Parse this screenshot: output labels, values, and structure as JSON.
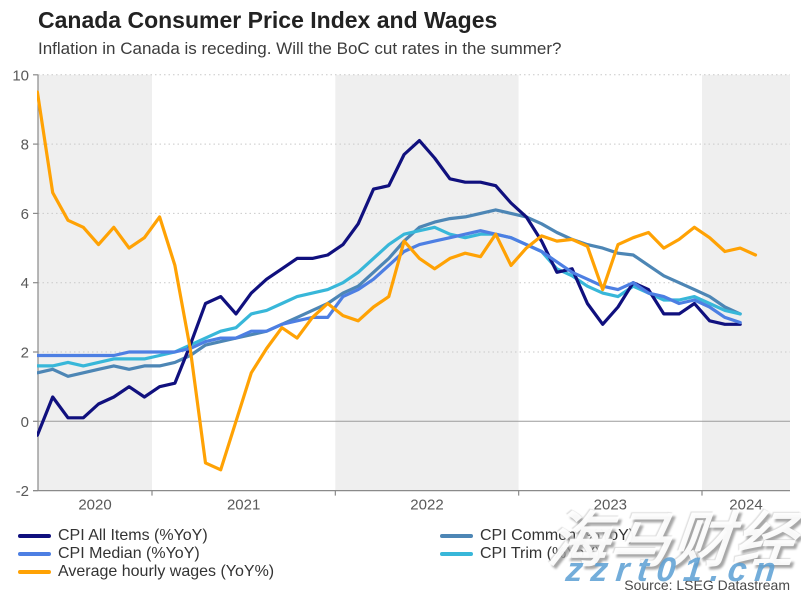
{
  "header": {
    "title": "Canada Consumer Price Index and Wages",
    "subtitle": "Inflation in Canada is receding. Will the BoC cut rates in the summer?"
  },
  "source": "Source: LSEG Datastream",
  "watermark": {
    "line1": "海马财经",
    "line2": "zzrt01.cn"
  },
  "legend": {
    "left_column": [
      {
        "label": "CPI All Items (%YoY)",
        "color": "#10107e"
      },
      {
        "label": "CPI Median (%YoY)",
        "color": "#4d7fe3"
      },
      {
        "label": "Average hourly wages (YoY%)",
        "color": "#ffa204"
      }
    ],
    "right_column": [
      {
        "label": "CPI Common (%YoY)",
        "color": "#4d86b5"
      },
      {
        "label": "CPI Trim (%YoY)",
        "color": "#38b7d9"
      }
    ]
  },
  "chart_data": {
    "type": "line",
    "title": "Canada Consumer Price Index and Wages",
    "x_start_month": "2020-05",
    "x_frequency": "monthly",
    "x_tick_labels": [
      "2020",
      "2021",
      "2022",
      "2023",
      "2024"
    ],
    "y_ticks": [
      -2,
      0,
      2,
      4,
      6,
      8,
      10
    ],
    "ylim": [
      -2,
      10
    ],
    "grid": "dotted-horizontal",
    "zero_line": true,
    "band_years_shaded": [
      "2020",
      "2022",
      "2024"
    ],
    "legend_position": "bottom",
    "colors": {
      "shaded_band": "#efefef",
      "gridline": "#c9c9c9",
      "zero_line": "#9b9b9b",
      "axis": "#8a8a8a",
      "tick_text": "#595959"
    },
    "series": [
      {
        "name": "CPI All Items (%YoY)",
        "color": "#10107e",
        "values": [
          -0.4,
          0.7,
          0.1,
          0.1,
          0.5,
          0.7,
          1.0,
          0.7,
          1.0,
          1.1,
          2.2,
          3.4,
          3.6,
          3.1,
          3.7,
          4.1,
          4.4,
          4.7,
          4.7,
          4.8,
          5.1,
          5.7,
          6.7,
          6.8,
          7.7,
          8.1,
          7.6,
          7.0,
          6.9,
          6.9,
          6.8,
          6.3,
          5.9,
          5.2,
          4.3,
          4.4,
          3.4,
          2.8,
          3.3,
          4.0,
          3.8,
          3.1,
          3.1,
          3.4,
          2.9,
          2.8,
          2.8
        ]
      },
      {
        "name": "CPI Median (%YoY)",
        "color": "#4d7fe3",
        "values": [
          1.9,
          1.9,
          1.9,
          1.9,
          1.9,
          1.9,
          2.0,
          2.0,
          2.0,
          2.0,
          2.1,
          2.3,
          2.4,
          2.4,
          2.6,
          2.6,
          2.8,
          2.9,
          3.0,
          3.0,
          3.6,
          3.8,
          4.1,
          4.5,
          4.9,
          5.1,
          5.2,
          5.3,
          5.4,
          5.5,
          5.4,
          5.3,
          5.1,
          4.9,
          4.6,
          4.3,
          4.1,
          3.9,
          3.8,
          4.0,
          3.7,
          3.6,
          3.4,
          3.5,
          3.3,
          3.0,
          2.85
        ]
      },
      {
        "name": "Average hourly wages (YoY%)",
        "color": "#ffa204",
        "values": [
          9.5,
          6.6,
          5.8,
          5.6,
          5.1,
          5.6,
          5.0,
          5.3,
          5.9,
          4.5,
          2.1,
          -1.2,
          -1.4,
          0.0,
          1.4,
          2.1,
          2.7,
          2.4,
          3.0,
          3.4,
          3.05,
          2.9,
          3.3,
          3.6,
          5.2,
          4.7,
          4.4,
          4.7,
          4.85,
          4.75,
          5.4,
          4.5,
          5.0,
          5.35,
          5.2,
          5.25,
          5.05,
          3.8,
          5.1,
          5.3,
          5.45,
          5.0,
          5.25,
          5.6,
          5.3,
          4.9,
          5.0,
          4.8
        ]
      },
      {
        "name": "CPI Common (%YoY)",
        "color": "#4d86b5",
        "values": [
          1.4,
          1.5,
          1.3,
          1.4,
          1.5,
          1.6,
          1.5,
          1.6,
          1.6,
          1.7,
          1.9,
          2.2,
          2.3,
          2.4,
          2.5,
          2.6,
          2.8,
          3.0,
          3.2,
          3.4,
          3.7,
          3.9,
          4.3,
          4.7,
          5.2,
          5.6,
          5.75,
          5.85,
          5.9,
          6.0,
          6.1,
          6.0,
          5.9,
          5.7,
          5.45,
          5.25,
          5.1,
          5.0,
          4.85,
          4.8,
          4.5,
          4.2,
          4.0,
          3.8,
          3.6,
          3.3,
          3.1
        ]
      },
      {
        "name": "CPI Trim (%YoY)",
        "color": "#38b7d9",
        "values": [
          1.6,
          1.6,
          1.7,
          1.6,
          1.7,
          1.8,
          1.8,
          1.8,
          1.9,
          2.0,
          2.2,
          2.4,
          2.6,
          2.7,
          3.1,
          3.2,
          3.4,
          3.6,
          3.7,
          3.8,
          4.0,
          4.3,
          4.7,
          5.1,
          5.4,
          5.5,
          5.6,
          5.4,
          5.3,
          5.4,
          5.4,
          5.3,
          5.1,
          4.9,
          4.4,
          4.2,
          3.9,
          3.7,
          3.6,
          3.9,
          3.7,
          3.5,
          3.5,
          3.6,
          3.4,
          3.2,
          3.1
        ]
      }
    ]
  }
}
